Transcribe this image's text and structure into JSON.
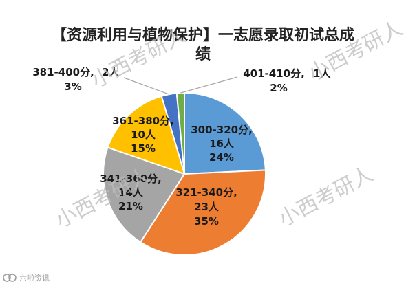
{
  "chart_data": {
    "type": "pie",
    "title_line1": "【资源利用与植物保护】一志愿录取初试总成",
    "title_line2": "绩",
    "slices": [
      {
        "range": "300-320分,",
        "count": "16人",
        "percent": "24%",
        "value": 16,
        "color": "#5b9bd5"
      },
      {
        "range": "321-340分,",
        "count": "23人",
        "percent": "35%",
        "value": 23,
        "color": "#ed7d31"
      },
      {
        "range": "341-360分,",
        "count": "14人",
        "percent": "21%",
        "value": 14,
        "color": "#a5a5a5"
      },
      {
        "range": "361-380分,",
        "count": "10人",
        "percent": "15%",
        "value": 10,
        "color": "#ffc000"
      },
      {
        "range": "381-400分,",
        "count": "2人",
        "percent": "3%",
        "value": 2,
        "color": "#4472c4"
      },
      {
        "range": "401-410分,",
        "count": "1人",
        "percent": "2%",
        "value": 1,
        "color": "#70ad47"
      }
    ]
  },
  "watermark": "小西考研人",
  "footer": {
    "brand": "六啦资讯"
  }
}
